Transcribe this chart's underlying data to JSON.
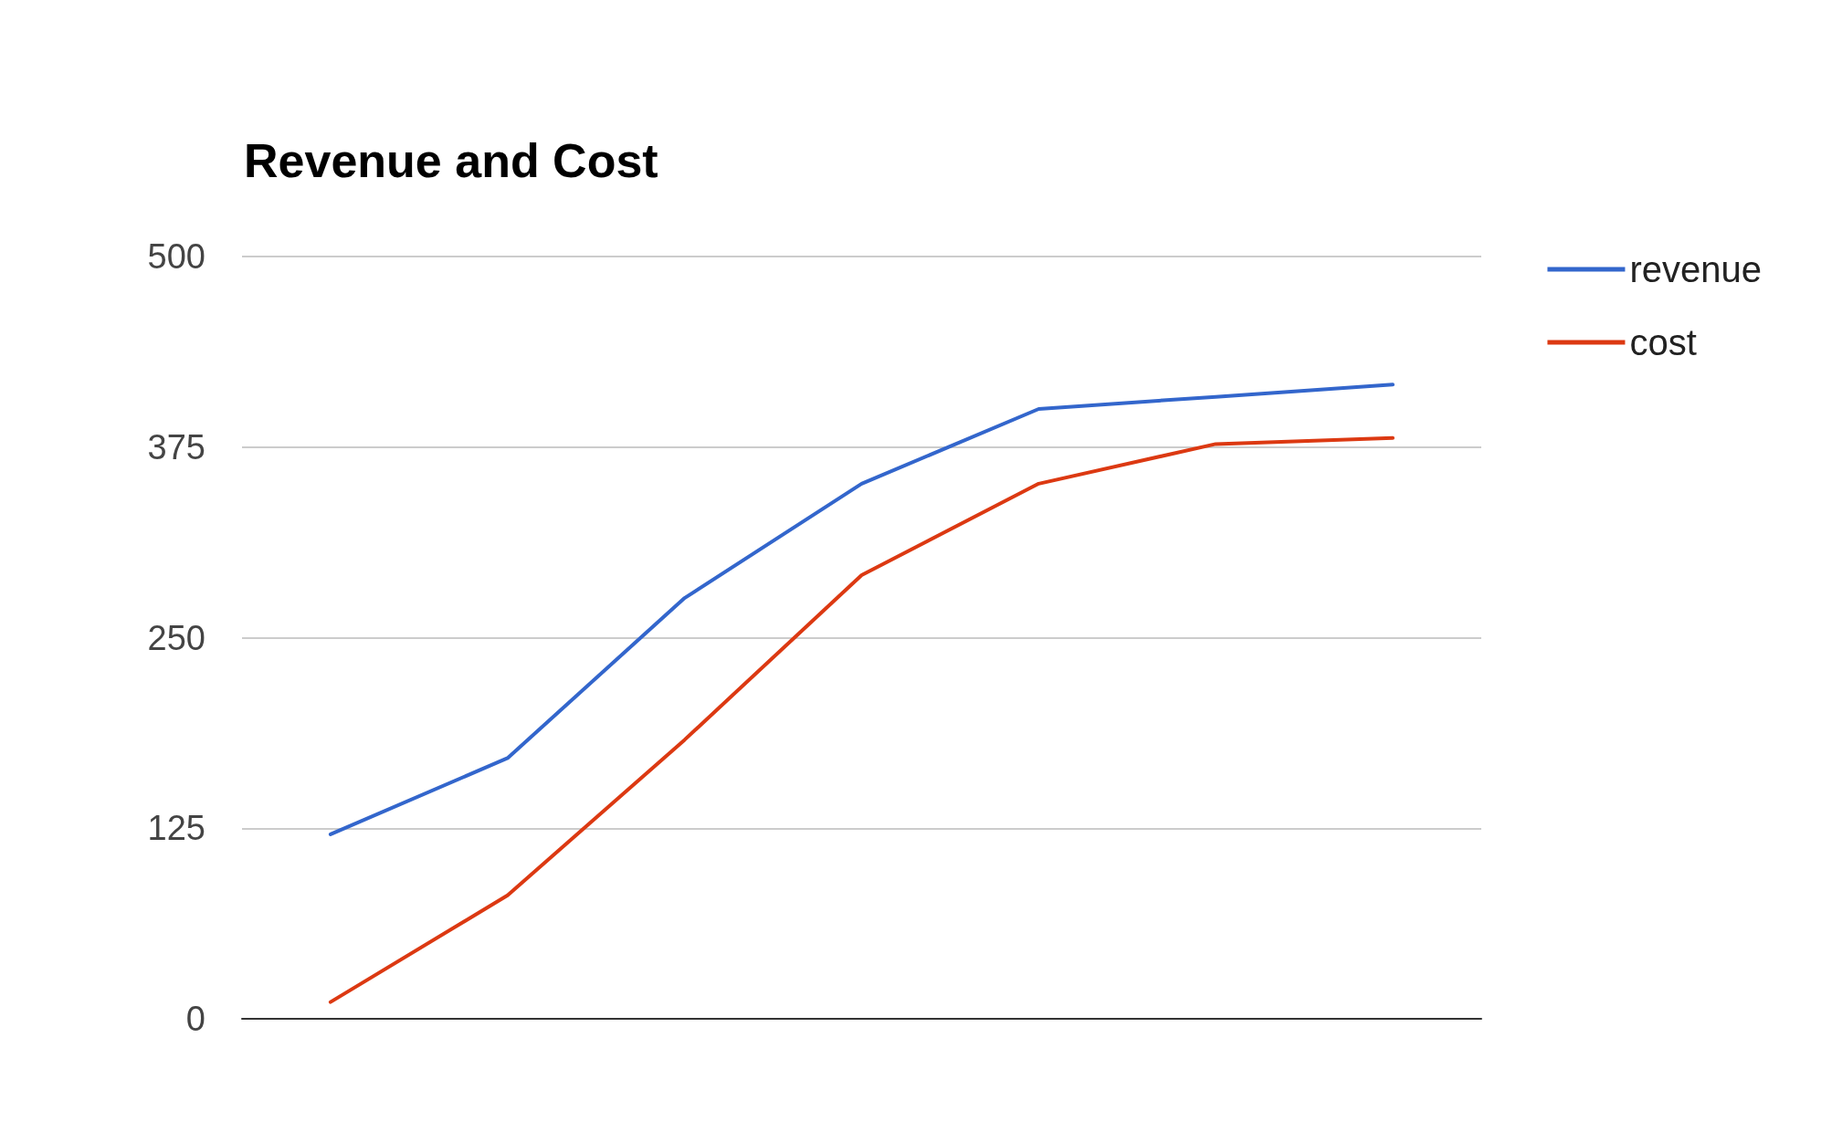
{
  "chart_data": {
    "type": "line",
    "title": "Revenue and Cost",
    "categories": [
      null,
      null,
      null,
      null,
      null,
      null,
      null
    ],
    "series": [
      {
        "name": "revenue",
        "color": "#3366cc",
        "values": [
          121,
          171,
          276,
          351,
          400,
          408,
          416
        ]
      },
      {
        "name": "cost",
        "color": "#dc3912",
        "values": [
          11,
          81,
          183,
          291,
          351,
          377,
          381
        ]
      }
    ],
    "ylim": [
      0,
      500
    ],
    "yticks": [
      0,
      125,
      250,
      375,
      500
    ],
    "grid": "y",
    "legend": "top right",
    "marker": "none",
    "line_style": "solid"
  }
}
